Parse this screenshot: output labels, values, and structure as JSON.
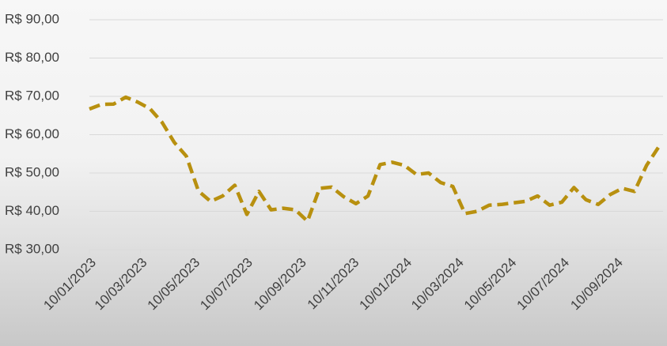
{
  "chart_data": {
    "type": "line",
    "x": [
      "2023-01-10",
      "2023-01-24",
      "2023-02-07",
      "2023-02-21",
      "2023-03-07",
      "2023-03-21",
      "2023-04-04",
      "2023-04-18",
      "2023-05-02",
      "2023-05-16",
      "2023-05-30",
      "2023-06-13",
      "2023-06-27",
      "2023-07-11",
      "2023-07-25",
      "2023-08-08",
      "2023-08-22",
      "2023-09-05",
      "2023-09-19",
      "2023-10-03",
      "2023-10-17",
      "2023-10-31",
      "2023-11-14",
      "2023-11-28",
      "2023-12-12",
      "2023-12-26",
      "2024-01-09",
      "2024-01-23",
      "2024-02-06",
      "2024-02-20",
      "2024-03-05",
      "2024-03-19",
      "2024-04-02",
      "2024-04-16",
      "2024-04-30",
      "2024-05-14",
      "2024-05-28",
      "2024-06-11",
      "2024-06-25",
      "2024-07-09",
      "2024-07-23",
      "2024-08-06",
      "2024-08-20",
      "2024-09-03",
      "2024-09-17",
      "2024-10-01",
      "2024-10-15",
      "2024-10-29"
    ],
    "series": [
      {
        "color": "#b8900f",
        "values": [
          66.7,
          67.9,
          68.0,
          69.8,
          68.5,
          66.8,
          63.2,
          58.0,
          54.4,
          45.3,
          42.6,
          44.0,
          46.8,
          39.2,
          45.2,
          40.4,
          40.8,
          40.4,
          37.4,
          46.0,
          46.3,
          43.8,
          42.0,
          44.0,
          52.2,
          52.8,
          52.0,
          49.6,
          50.0,
          47.5,
          46.5,
          39.4,
          40.0,
          41.6,
          41.8,
          42.2,
          42.6,
          44.0,
          41.6,
          42.4,
          46.2,
          43.0,
          41.8,
          44.4,
          46.0,
          45.2,
          52.0,
          56.8
        ]
      }
    ],
    "xlim": [
      "2023-01-10",
      "2024-11-03"
    ],
    "xticks": [
      {
        "value": "2023-01-10",
        "label": "10/01/2023"
      },
      {
        "value": "2023-03-10",
        "label": "10/03/2023"
      },
      {
        "value": "2023-05-10",
        "label": "10/05/2023"
      },
      {
        "value": "2023-07-10",
        "label": "10/07/2023"
      },
      {
        "value": "2023-09-10",
        "label": "10/09/2023"
      },
      {
        "value": "2023-11-10",
        "label": "10/11/2023"
      },
      {
        "value": "2024-01-10",
        "label": "10/01/2024"
      },
      {
        "value": "2024-03-10",
        "label": "10/03/2024"
      },
      {
        "value": "2024-05-10",
        "label": "10/05/2024"
      },
      {
        "value": "2024-07-10",
        "label": "10/07/2024"
      },
      {
        "value": "2024-09-10",
        "label": "10/09/2024"
      }
    ],
    "ylim": [
      30,
      90
    ],
    "yticks": [
      {
        "value": 30,
        "label": "R$ 30,00"
      },
      {
        "value": 40,
        "label": "R$ 40,00"
      },
      {
        "value": 50,
        "label": "R$ 50,00"
      },
      {
        "value": 60,
        "label": "R$ 60,00"
      },
      {
        "value": 70,
        "label": "R$ 70,00"
      },
      {
        "value": 80,
        "label": "R$ 80,00"
      },
      {
        "value": 90,
        "label": "R$ 90,00"
      }
    ],
    "grid": true,
    "dashed": true
  }
}
